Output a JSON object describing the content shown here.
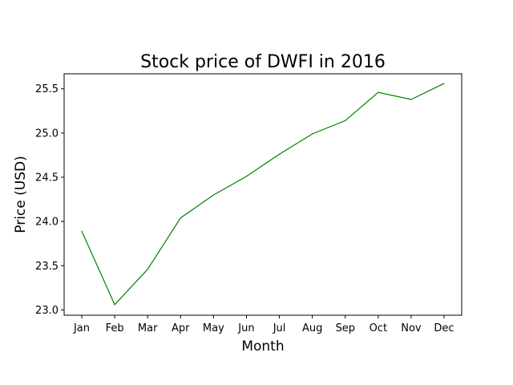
{
  "chart_data": {
    "type": "line",
    "title": "Stock price of DWFI in 2016",
    "xlabel": "Month",
    "ylabel": "Price (USD)",
    "categories": [
      "Jan",
      "Feb",
      "Mar",
      "Apr",
      "May",
      "Jun",
      "Jul",
      "Aug",
      "Sep",
      "Oct",
      "Nov",
      "Dec"
    ],
    "series": [
      {
        "values": [
          23.89,
          23.06,
          23.46,
          24.04,
          24.3,
          24.51,
          24.76,
          24.99,
          25.14,
          25.46,
          25.38,
          25.56
        ],
        "color": "#008000"
      }
    ],
    "ylim": [
      22.94,
      25.67
    ],
    "yticks": [
      23.0,
      23.5,
      24.0,
      24.5,
      25.0,
      25.5
    ],
    "ytick_labels": [
      "23.0",
      "23.5",
      "24.0",
      "24.5",
      "25.0",
      "25.5"
    ],
    "grid": false,
    "legend": "none"
  }
}
